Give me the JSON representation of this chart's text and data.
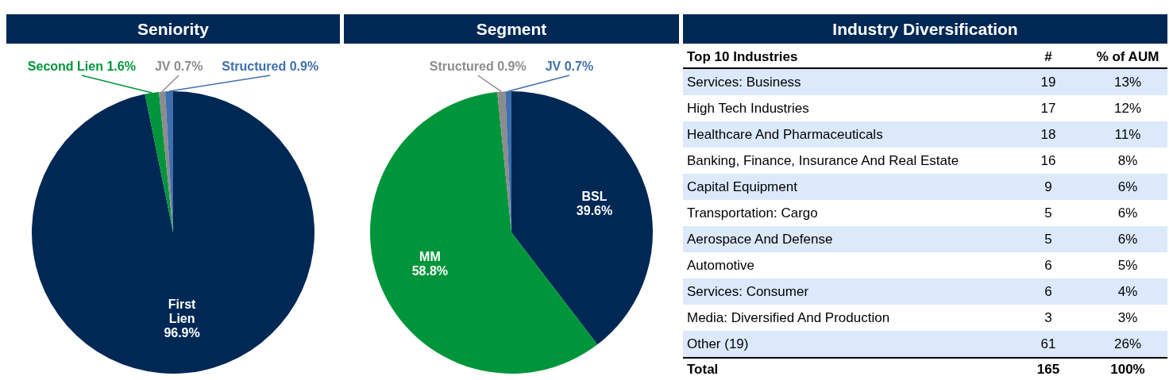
{
  "chart_data": [
    {
      "type": "pie",
      "title": "Seniority",
      "categories": [
        "First Lien",
        "Second Lien",
        "JV",
        "Structured"
      ],
      "values": [
        96.9,
        1.6,
        0.7,
        0.9
      ],
      "colors": [
        "#002855",
        "#00953a",
        "#8c8c8c",
        "#3f6fae"
      ],
      "value_labels": [
        "96.9%",
        "1.6%",
        "0.7%",
        "0.9%"
      ]
    },
    {
      "type": "pie",
      "title": "Segment",
      "categories": [
        "BSL",
        "MM",
        "Structured",
        "JV"
      ],
      "values": [
        39.6,
        58.8,
        0.9,
        0.7
      ],
      "colors": [
        "#002855",
        "#00953a",
        "#8c8c8c",
        "#3f6fae"
      ],
      "value_labels": [
        "39.6%",
        "58.8%",
        "0.9%",
        "0.7%"
      ]
    },
    {
      "type": "other",
      "title": "Industry Diversification",
      "ylabel": "Top 10 Industries",
      "categories": [
        "Services: Business",
        "High Tech Industries",
        "Healthcare And Pharmaceuticals",
        "Banking, Finance, Insurance And Real Estate",
        "Capital Equipment",
        "Transportation: Cargo",
        "Aerospace And Defense",
        "Automotive",
        "Services: Consumer",
        "Media: Diversified And Production",
        "Other (19)",
        "Total"
      ],
      "series": [
        {
          "name": "#",
          "values": [
            19,
            17,
            18,
            16,
            9,
            5,
            5,
            6,
            6,
            3,
            61,
            165
          ],
          "value_labels": [
            "19",
            "17",
            "18",
            "16",
            "9",
            "5",
            "5",
            "6",
            "6",
            "3",
            "61",
            "165"
          ]
        },
        {
          "name": "% of AUM",
          "values": [
            13,
            12,
            11,
            8,
            6,
            6,
            6,
            5,
            4,
            3,
            26,
            100
          ],
          "value_labels": [
            "13%",
            "12%",
            "11%",
            "8%",
            "6%",
            "6%",
            "6%",
            "5%",
            "4%",
            "3%",
            "26%",
            "100%"
          ]
        }
      ]
    }
  ]
}
